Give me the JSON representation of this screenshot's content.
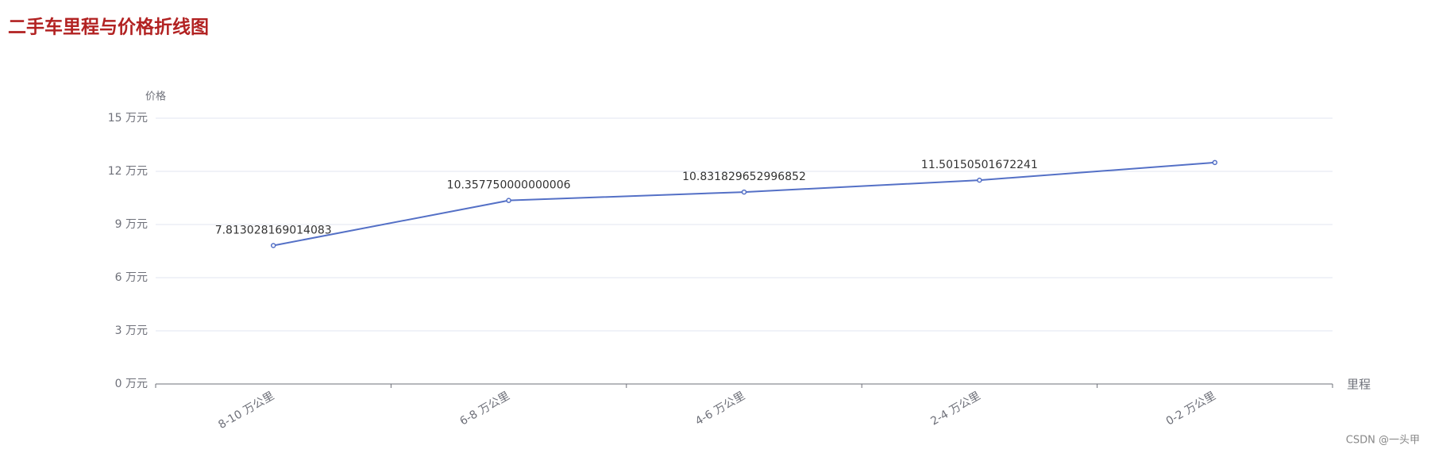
{
  "chart_data": {
    "type": "line",
    "title": "二手车里程与价格折线图",
    "x_axis_label": "里程",
    "y_axis_label": "价格",
    "categories": [
      "8-10 万公里",
      "6-8 万公里",
      "4-6 万公里",
      "2-4 万公里",
      "0-2 万公里"
    ],
    "series": [
      {
        "name": "价格",
        "color": "#5470c6",
        "values": [
          7.813028169014083,
          10.357750000000006,
          10.831829652996852,
          11.50150501672241,
          12.5
        ],
        "value_labels": [
          "7.813028169014083",
          "10.357750000000006",
          "10.831829652996852",
          "11.50150501672241",
          null
        ]
      }
    ],
    "ylim": [
      0,
      15
    ],
    "yticks": [
      {
        "value": 0,
        "label": "0 万元"
      },
      {
        "value": 3,
        "label": "3 万元"
      },
      {
        "value": 6,
        "label": "6 万元"
      },
      {
        "value": 9,
        "label": "9 万元"
      },
      {
        "value": 12,
        "label": "12 万元"
      },
      {
        "value": 15,
        "label": "15 万元"
      }
    ],
    "grid": true,
    "watermark": "CSDN @一头甲"
  }
}
